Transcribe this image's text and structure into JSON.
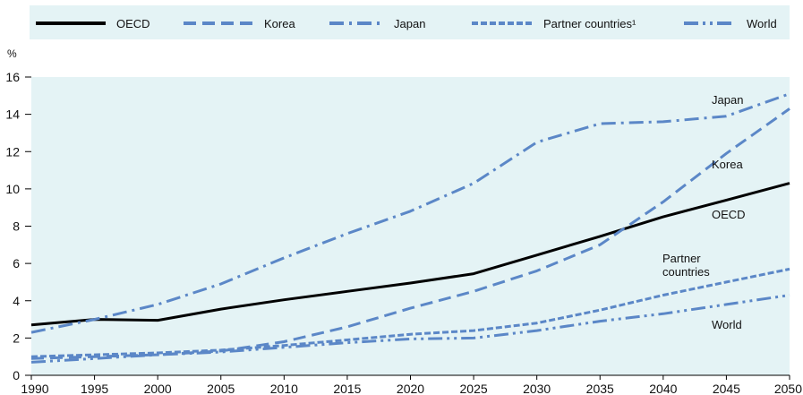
{
  "chart_data": {
    "type": "line",
    "ylabel": "%",
    "ylim": [
      0,
      16
    ],
    "xlim": [
      1990,
      2050
    ],
    "yticks": [
      0,
      2,
      4,
      6,
      8,
      10,
      12,
      14,
      16
    ],
    "xticks": [
      1990,
      1995,
      2000,
      2005,
      2010,
      2015,
      2020,
      2025,
      2030,
      2035,
      2040,
      2045,
      2050
    ],
    "grid": false,
    "legend_position": "top",
    "background_color": "#e4f3f5",
    "series": [
      {
        "name": "OECD",
        "direct_label": "OECD",
        "color": "#000000",
        "dash": "solid",
        "x": [
          1990,
          1995,
          2000,
          2005,
          2010,
          2015,
          2020,
          2025,
          2030,
          2035,
          2040,
          2045,
          2050
        ],
        "y": [
          2.7,
          3.0,
          2.95,
          3.55,
          4.05,
          4.5,
          4.95,
          5.45,
          6.45,
          7.45,
          8.5,
          9.4,
          10.3
        ]
      },
      {
        "name": "Korea",
        "direct_label": "Korea",
        "color": "#5b87c7",
        "dash": "dash",
        "x": [
          1990,
          1995,
          2000,
          2005,
          2010,
          2015,
          2020,
          2025,
          2030,
          2035,
          2040,
          2045,
          2050
        ],
        "y": [
          0.9,
          1.0,
          1.1,
          1.3,
          1.8,
          2.6,
          3.6,
          4.5,
          5.6,
          7.0,
          9.3,
          11.9,
          14.3
        ]
      },
      {
        "name": "Japan",
        "direct_label": "Japan",
        "color": "#5b87c7",
        "dash": "dashdot",
        "x": [
          1990,
          1995,
          2000,
          2005,
          2010,
          2015,
          2020,
          2025,
          2030,
          2035,
          2040,
          2045,
          2050
        ],
        "y": [
          2.3,
          3.0,
          3.8,
          4.9,
          6.3,
          7.6,
          8.8,
          10.3,
          12.5,
          13.5,
          13.6,
          13.9,
          15.1
        ]
      },
      {
        "name": "Partner countries¹",
        "direct_label": "Partner countries",
        "color": "#5b87c7",
        "dash": "shortdash",
        "x": [
          1990,
          1995,
          2000,
          2005,
          2010,
          2015,
          2020,
          2025,
          2030,
          2035,
          2040,
          2045,
          2050
        ],
        "y": [
          1.0,
          1.1,
          1.2,
          1.35,
          1.6,
          1.9,
          2.2,
          2.4,
          2.8,
          3.5,
          4.3,
          5.0,
          5.7
        ]
      },
      {
        "name": "World",
        "direct_label": "World",
        "color": "#5b87c7",
        "dash": "dashdotdot",
        "x": [
          1990,
          1995,
          2000,
          2005,
          2010,
          2015,
          2020,
          2025,
          2030,
          2035,
          2040,
          2045,
          2050
        ],
        "y": [
          0.7,
          0.9,
          1.1,
          1.25,
          1.5,
          1.75,
          1.95,
          2.0,
          2.4,
          2.9,
          3.3,
          3.8,
          4.3
        ]
      }
    ]
  }
}
